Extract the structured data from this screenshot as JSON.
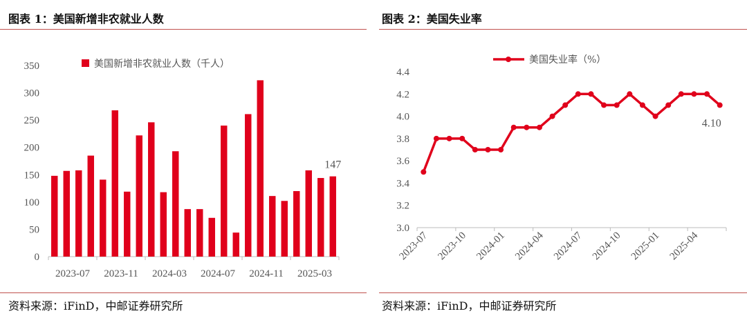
{
  "left": {
    "title": "图表 1：美国新增非农就业人数",
    "source": "资料来源：iFinD，中邮证券研究所"
  },
  "right": {
    "title": "图表 2：美国失业率",
    "source": "资料来源：iFinD，中邮证券研究所"
  },
  "colors": {
    "series": "#e0001b",
    "rule": "#c0504d"
  },
  "chart_data": [
    {
      "type": "bar",
      "legend": "美国新增非农就业人数（千人）",
      "categories": [
        "2023-07",
        "2023-08",
        "2023-09",
        "2023-10",
        "2023-11",
        "2023-12",
        "2024-01",
        "2024-02",
        "2024-03",
        "2024-04",
        "2024-05",
        "2024-06",
        "2024-07",
        "2024-08",
        "2024-09",
        "2024-10",
        "2024-11",
        "2024-12",
        "2025-01",
        "2025-02",
        "2025-03",
        "2025-04",
        "2025-05",
        "2025-06"
      ],
      "values": [
        148,
        157,
        158,
        185,
        141,
        268,
        119,
        222,
        246,
        118,
        193,
        87,
        87,
        71,
        240,
        44,
        261,
        323,
        111,
        102,
        120,
        158,
        144,
        147
      ],
      "ylim": [
        0,
        350
      ],
      "yticks": [
        "0",
        "50",
        "100",
        "150",
        "200",
        "250",
        "300",
        "350"
      ],
      "xticks": [
        "2023-07",
        "2023-11",
        "2024-03",
        "2024-07",
        "2024-11",
        "2025-03"
      ],
      "data_label": "147",
      "legend_position": "top"
    },
    {
      "type": "line",
      "legend": "美国失业率（%）",
      "categories": [
        "2023-07",
        "2023-08",
        "2023-09",
        "2023-10",
        "2023-11",
        "2023-12",
        "2024-01",
        "2024-02",
        "2024-03",
        "2024-04",
        "2024-05",
        "2024-06",
        "2024-07",
        "2024-08",
        "2024-09",
        "2024-10",
        "2024-11",
        "2024-12",
        "2025-01",
        "2025-02",
        "2025-03",
        "2025-04",
        "2025-05",
        "2025-06"
      ],
      "values": [
        3.5,
        3.8,
        3.8,
        3.8,
        3.7,
        3.7,
        3.7,
        3.9,
        3.9,
        3.9,
        4.0,
        4.1,
        4.2,
        4.2,
        4.1,
        4.1,
        4.2,
        4.1,
        4.0,
        4.1,
        4.2,
        4.2,
        4.2,
        4.1
      ],
      "ylim": [
        3.0,
        4.4
      ],
      "yticks": [
        "3.0",
        "3.2",
        "3.4",
        "3.6",
        "3.8",
        "4.0",
        "4.2",
        "4.4"
      ],
      "xticks": [
        "2023-07",
        "2023-10",
        "2024-01",
        "2024-04",
        "2024-07",
        "2024-10",
        "2025-01",
        "2025-04"
      ],
      "data_label": "4.10",
      "legend_position": "top"
    }
  ]
}
